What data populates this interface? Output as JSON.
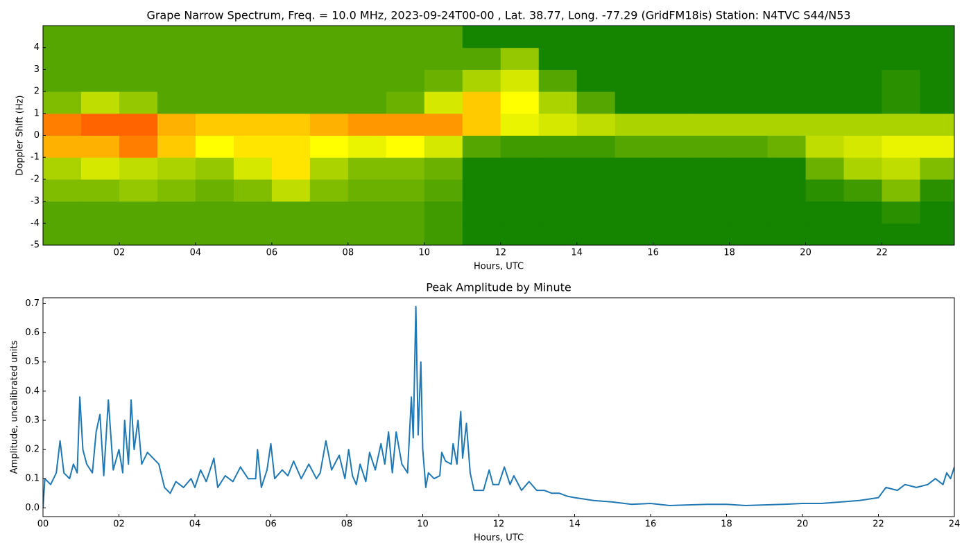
{
  "chart_data": [
    {
      "type": "heatmap",
      "title": "Grape Narrow Spectrum, Freq. = 10.0 MHz, 2023-09-24T00-00 , Lat.  38.77, Long. -77.29 (GridFM18is) Station: N4TVC S44/N53",
      "xlabel": "Hours, UTC",
      "ylabel": "Doppler Shift (Hz)",
      "xlim": [
        0,
        23.9
      ],
      "ylim": [
        -5,
        5
      ],
      "xticks": [
        {
          "value": 2,
          "label": "02"
        },
        {
          "value": 4,
          "label": "04"
        },
        {
          "value": 6,
          "label": "06"
        },
        {
          "value": 8,
          "label": "08"
        },
        {
          "value": 10,
          "label": "10"
        },
        {
          "value": 12,
          "label": "12"
        },
        {
          "value": 14,
          "label": "14"
        },
        {
          "value": 16,
          "label": "16"
        },
        {
          "value": 18,
          "label": "18"
        },
        {
          "value": 20,
          "label": "20"
        },
        {
          "value": 22,
          "label": "22"
        }
      ],
      "yticks": [
        -5,
        -4,
        -3,
        -2,
        -1,
        0,
        1,
        2,
        3,
        4
      ],
      "colorscale": [
        [
          0,
          "#007a00"
        ],
        [
          0.6,
          "#ffff00"
        ],
        [
          1,
          "#ff3000"
        ]
      ],
      "x_edges": [
        0,
        1,
        2,
        3,
        4,
        5,
        6,
        7,
        8,
        9,
        10,
        11,
        12,
        13,
        14,
        15,
        16,
        17,
        18,
        19,
        20,
        21,
        22,
        23,
        23.9
      ],
      "y_edges": [
        -5,
        -4,
        -3,
        -2,
        -1,
        0,
        1,
        2,
        3,
        4,
        5
      ],
      "z": [
        [
          0.2,
          0.2,
          0.2,
          0.2,
          0.2,
          0.2,
          0.2,
          0.2,
          0.2,
          0.2,
          0.15,
          0.05,
          0.05,
          0.05,
          0.05,
          0.05,
          0.05,
          0.05,
          0.05,
          0.05,
          0.05,
          0.05,
          0.05,
          0.05
        ],
        [
          0.2,
          0.2,
          0.2,
          0.2,
          0.2,
          0.2,
          0.2,
          0.2,
          0.2,
          0.2,
          0.15,
          0.05,
          0.05,
          0.05,
          0.05,
          0.05,
          0.05,
          0.05,
          0.05,
          0.05,
          0.05,
          0.05,
          0.1,
          0.05
        ],
        [
          0.3,
          0.3,
          0.35,
          0.3,
          0.25,
          0.3,
          0.45,
          0.3,
          0.25,
          0.25,
          0.2,
          0.05,
          0.05,
          0.05,
          0.05,
          0.05,
          0.05,
          0.05,
          0.05,
          0.05,
          0.1,
          0.15,
          0.3,
          0.1
        ],
        [
          0.4,
          0.5,
          0.45,
          0.4,
          0.35,
          0.5,
          0.65,
          0.4,
          0.3,
          0.3,
          0.25,
          0.05,
          0.05,
          0.05,
          0.05,
          0.05,
          0.05,
          0.05,
          0.05,
          0.05,
          0.25,
          0.4,
          0.45,
          0.3
        ],
        [
          0.75,
          0.75,
          0.85,
          0.7,
          0.6,
          0.65,
          0.65,
          0.6,
          0.55,
          0.6,
          0.5,
          0.2,
          0.15,
          0.15,
          0.15,
          0.2,
          0.2,
          0.2,
          0.2,
          0.25,
          0.45,
          0.5,
          0.55,
          0.55
        ],
        [
          0.85,
          0.9,
          0.9,
          0.75,
          0.7,
          0.7,
          0.7,
          0.75,
          0.8,
          0.8,
          0.8,
          0.7,
          0.55,
          0.5,
          0.45,
          0.4,
          0.4,
          0.4,
          0.4,
          0.4,
          0.4,
          0.4,
          0.4,
          0.4
        ],
        [
          0.3,
          0.45,
          0.35,
          0.2,
          0.2,
          0.2,
          0.2,
          0.2,
          0.2,
          0.25,
          0.5,
          0.7,
          0.6,
          0.4,
          0.2,
          0.05,
          0.05,
          0.05,
          0.05,
          0.05,
          0.05,
          0.05,
          0.1,
          0.05
        ],
        [
          0.2,
          0.2,
          0.2,
          0.2,
          0.2,
          0.2,
          0.2,
          0.2,
          0.2,
          0.2,
          0.25,
          0.4,
          0.5,
          0.2,
          0.05,
          0.05,
          0.05,
          0.05,
          0.05,
          0.05,
          0.05,
          0.05,
          0.1,
          0.05
        ],
        [
          0.2,
          0.2,
          0.2,
          0.2,
          0.2,
          0.2,
          0.2,
          0.2,
          0.2,
          0.2,
          0.2,
          0.2,
          0.35,
          0.05,
          0.05,
          0.05,
          0.05,
          0.05,
          0.05,
          0.05,
          0.05,
          0.05,
          0.05,
          0.05
        ],
        [
          0.2,
          0.2,
          0.2,
          0.2,
          0.2,
          0.2,
          0.2,
          0.2,
          0.2,
          0.2,
          0.2,
          0.05,
          0.05,
          0.05,
          0.05,
          0.05,
          0.05,
          0.05,
          0.05,
          0.05,
          0.05,
          0.05,
          0.05,
          0.05
        ]
      ]
    },
    {
      "type": "line",
      "title": "Peak Amplitude by Minute",
      "xlabel": "Hours, UTC",
      "ylabel": "Amplitude, uncalibrated units",
      "color": "#1f77b4",
      "xlim": [
        0,
        24
      ],
      "ylim": [
        -0.03,
        0.72
      ],
      "xticks": [
        {
          "value": 0,
          "label": "00"
        },
        {
          "value": 2,
          "label": "02"
        },
        {
          "value": 4,
          "label": "04"
        },
        {
          "value": 6,
          "label": "06"
        },
        {
          "value": 8,
          "label": "08"
        },
        {
          "value": 10,
          "label": "10"
        },
        {
          "value": 12,
          "label": "12"
        },
        {
          "value": 14,
          "label": "14"
        },
        {
          "value": 16,
          "label": "16"
        },
        {
          "value": 18,
          "label": "18"
        },
        {
          "value": 20,
          "label": "20"
        },
        {
          "value": 22,
          "label": "22"
        },
        {
          "value": 24,
          "label": "24"
        }
      ],
      "yticks": [
        {
          "value": 0,
          "label": "0.0"
        },
        0.1,
        0.2,
        0.3,
        0.4,
        0.5,
        0.6,
        0.7
      ],
      "x": [
        0,
        0.05,
        0.2,
        0.35,
        0.45,
        0.55,
        0.7,
        0.8,
        0.9,
        0.97,
        1.05,
        1.15,
        1.3,
        1.4,
        1.5,
        1.6,
        1.72,
        1.85,
        2.0,
        2.1,
        2.15,
        2.25,
        2.32,
        2.4,
        2.5,
        2.6,
        2.75,
        2.9,
        3.05,
        3.2,
        3.35,
        3.5,
        3.7,
        3.9,
        4.0,
        4.15,
        4.3,
        4.5,
        4.6,
        4.8,
        5.0,
        5.2,
        5.4,
        5.6,
        5.65,
        5.75,
        5.9,
        6.0,
        6.1,
        6.3,
        6.45,
        6.6,
        6.8,
        7.0,
        7.2,
        7.3,
        7.45,
        7.6,
        7.8,
        7.95,
        8.05,
        8.15,
        8.25,
        8.35,
        8.5,
        8.6,
        8.75,
        8.9,
        9.0,
        9.1,
        9.2,
        9.3,
        9.45,
        9.6,
        9.7,
        9.75,
        9.82,
        9.88,
        9.95,
        10.0,
        10.08,
        10.15,
        10.3,
        10.45,
        10.5,
        10.6,
        10.75,
        10.8,
        10.9,
        11.0,
        11.05,
        11.15,
        11.25,
        11.35,
        11.6,
        11.75,
        11.85,
        12.0,
        12.15,
        12.3,
        12.4,
        12.6,
        12.8,
        13.0,
        13.2,
        13.4,
        13.6,
        13.8,
        14.0,
        14.5,
        15.0,
        15.5,
        16.0,
        16.5,
        17.0,
        17.5,
        18.0,
        18.5,
        19.0,
        19.5,
        20.0,
        20.5,
        21.0,
        21.5,
        22.0,
        22.2,
        22.5,
        22.7,
        23.0,
        23.3,
        23.5,
        23.7,
        23.8,
        23.9,
        24.0
      ],
      "values": [
        0.0,
        0.1,
        0.08,
        0.12,
        0.23,
        0.12,
        0.1,
        0.15,
        0.12,
        0.38,
        0.2,
        0.15,
        0.12,
        0.26,
        0.32,
        0.11,
        0.37,
        0.13,
        0.2,
        0.12,
        0.3,
        0.15,
        0.37,
        0.2,
        0.3,
        0.15,
        0.19,
        0.17,
        0.15,
        0.07,
        0.05,
        0.09,
        0.07,
        0.1,
        0.07,
        0.13,
        0.09,
        0.17,
        0.07,
        0.11,
        0.09,
        0.14,
        0.1,
        0.1,
        0.2,
        0.07,
        0.13,
        0.22,
        0.1,
        0.13,
        0.11,
        0.16,
        0.1,
        0.15,
        0.1,
        0.12,
        0.23,
        0.13,
        0.18,
        0.1,
        0.2,
        0.11,
        0.08,
        0.15,
        0.09,
        0.19,
        0.13,
        0.22,
        0.15,
        0.26,
        0.12,
        0.26,
        0.15,
        0.12,
        0.38,
        0.24,
        0.69,
        0.25,
        0.5,
        0.2,
        0.07,
        0.12,
        0.1,
        0.11,
        0.19,
        0.16,
        0.15,
        0.22,
        0.15,
        0.33,
        0.17,
        0.29,
        0.12,
        0.06,
        0.06,
        0.13,
        0.08,
        0.08,
        0.14,
        0.08,
        0.11,
        0.06,
        0.09,
        0.06,
        0.06,
        0.05,
        0.05,
        0.04,
        0.035,
        0.025,
        0.02,
        0.012,
        0.015,
        0.008,
        0.01,
        0.012,
        0.012,
        0.008,
        0.01,
        0.012,
        0.015,
        0.015,
        0.02,
        0.025,
        0.035,
        0.07,
        0.06,
        0.08,
        0.07,
        0.08,
        0.1,
        0.08,
        0.12,
        0.1,
        0.14
      ]
    }
  ]
}
